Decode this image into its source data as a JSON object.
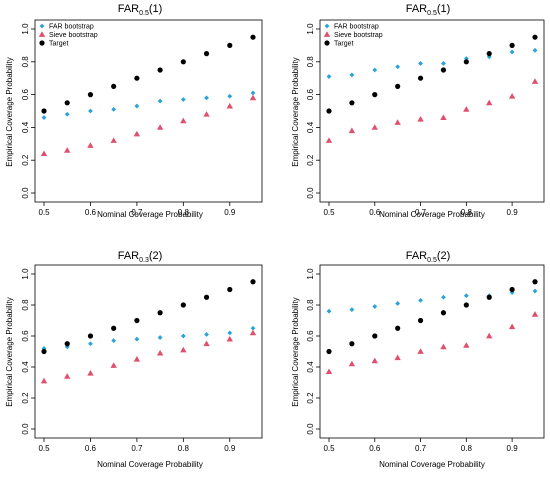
{
  "chart_data": [
    {
      "type": "scatter",
      "title": "FAR",
      "title_subscript": "0.5",
      "title_suffix": "(1)",
      "xlabel": "Nominal Coverage Probability",
      "ylabel": "Empirical Coverage Probability",
      "xlim": [
        0.5,
        0.95
      ],
      "ylim": [
        0.0,
        1.0
      ],
      "xticks": [
        "0.5",
        "0.6",
        "0.7",
        "0.8",
        "0.9"
      ],
      "yticks": [
        "0.0",
        "0.2",
        "0.4",
        "0.6",
        "0.8",
        "1.0"
      ],
      "legend": "top-left",
      "x": [
        0.5,
        0.55,
        0.6,
        0.65,
        0.7,
        0.75,
        0.8,
        0.85,
        0.9,
        0.95
      ],
      "series": [
        {
          "name": "FAR bootstrap",
          "marker": "diamond",
          "color": "#2aa3db",
          "values": [
            0.46,
            0.48,
            0.5,
            0.51,
            0.53,
            0.56,
            0.57,
            0.58,
            0.59,
            0.61
          ]
        },
        {
          "name": "Sieve bootstrap",
          "marker": "triangle",
          "color": "#e0506e",
          "values": [
            0.24,
            0.26,
            0.29,
            0.32,
            0.36,
            0.4,
            0.44,
            0.48,
            0.53,
            0.58
          ]
        },
        {
          "name": "Target",
          "marker": "circle",
          "color": "#000000",
          "values": [
            0.5,
            0.55,
            0.6,
            0.65,
            0.7,
            0.75,
            0.8,
            0.85,
            0.9,
            0.95
          ]
        }
      ]
    },
    {
      "type": "scatter",
      "title": "FAR",
      "title_subscript": "0.5",
      "title_suffix": "(1)",
      "xlabel": "Nominal Coverage Probability",
      "ylabel": "Empirical Coverage Probability",
      "xlim": [
        0.5,
        0.95
      ],
      "ylim": [
        0.0,
        1.0
      ],
      "xticks": [
        "0.5",
        "0.6",
        "0.7",
        "0.8",
        "0.9"
      ],
      "yticks": [
        "0.0",
        "0.2",
        "0.4",
        "0.6",
        "0.8",
        "1.0"
      ],
      "legend": "top-left",
      "x": [
        0.5,
        0.55,
        0.6,
        0.65,
        0.7,
        0.75,
        0.8,
        0.85,
        0.9,
        0.95
      ],
      "series": [
        {
          "name": "FAR bootstrap",
          "marker": "diamond",
          "color": "#2aa3db",
          "values": [
            0.71,
            0.72,
            0.75,
            0.77,
            0.79,
            0.79,
            0.82,
            0.83,
            0.86,
            0.87
          ]
        },
        {
          "name": "Sieve bootstrap",
          "marker": "triangle",
          "color": "#e0506e",
          "values": [
            0.32,
            0.38,
            0.4,
            0.43,
            0.45,
            0.46,
            0.51,
            0.55,
            0.59,
            0.68
          ]
        },
        {
          "name": "Target",
          "marker": "circle",
          "color": "#000000",
          "values": [
            0.5,
            0.55,
            0.6,
            0.65,
            0.7,
            0.75,
            0.8,
            0.85,
            0.9,
            0.95
          ]
        }
      ]
    },
    {
      "type": "scatter",
      "title": "FAR",
      "title_subscript": "0.3",
      "title_suffix": "(2)",
      "xlabel": "Nominal Coverage Probability",
      "ylabel": "Empirical Coverage Probability",
      "xlim": [
        0.5,
        0.95
      ],
      "ylim": [
        0.0,
        1.0
      ],
      "xticks": [
        "0.5",
        "0.6",
        "0.7",
        "0.8",
        "0.9"
      ],
      "yticks": [
        "0.0",
        "0.2",
        "0.4",
        "0.6",
        "0.8",
        "1.0"
      ],
      "legend": "none",
      "x": [
        0.5,
        0.55,
        0.6,
        0.65,
        0.7,
        0.75,
        0.8,
        0.85,
        0.9,
        0.95
      ],
      "series": [
        {
          "name": "FAR bootstrap",
          "marker": "diamond",
          "color": "#2aa3db",
          "values": [
            0.52,
            0.53,
            0.55,
            0.57,
            0.58,
            0.59,
            0.6,
            0.61,
            0.62,
            0.65
          ]
        },
        {
          "name": "Sieve bootstrap",
          "marker": "triangle",
          "color": "#e0506e",
          "values": [
            0.31,
            0.34,
            0.36,
            0.41,
            0.45,
            0.49,
            0.51,
            0.55,
            0.58,
            0.62
          ]
        },
        {
          "name": "Target",
          "marker": "circle",
          "color": "#000000",
          "values": [
            0.5,
            0.55,
            0.6,
            0.65,
            0.7,
            0.75,
            0.8,
            0.85,
            0.9,
            0.95
          ]
        }
      ]
    },
    {
      "type": "scatter",
      "title": "FAR",
      "title_subscript": "0.5",
      "title_suffix": "(2)",
      "xlabel": "Nominal Coverage Probability",
      "ylabel": "Empirical Coverage Probability",
      "xlim": [
        0.5,
        0.95
      ],
      "ylim": [
        0.0,
        1.0
      ],
      "xticks": [
        "0.5",
        "0.6",
        "0.7",
        "0.8",
        "0.9"
      ],
      "yticks": [
        "0.0",
        "0.2",
        "0.4",
        "0.6",
        "0.8",
        "1.0"
      ],
      "legend": "none",
      "x": [
        0.5,
        0.55,
        0.6,
        0.65,
        0.7,
        0.75,
        0.8,
        0.85,
        0.9,
        0.95
      ],
      "series": [
        {
          "name": "FAR bootstrap",
          "marker": "diamond",
          "color": "#2aa3db",
          "values": [
            0.76,
            0.77,
            0.79,
            0.81,
            0.83,
            0.85,
            0.86,
            0.86,
            0.88,
            0.89
          ]
        },
        {
          "name": "Sieve bootstrap",
          "marker": "triangle",
          "color": "#e0506e",
          "values": [
            0.37,
            0.42,
            0.44,
            0.46,
            0.5,
            0.53,
            0.54,
            0.6,
            0.66,
            0.74
          ]
        },
        {
          "name": "Target",
          "marker": "circle",
          "color": "#000000",
          "values": [
            0.5,
            0.55,
            0.6,
            0.65,
            0.7,
            0.75,
            0.8,
            0.85,
            0.9,
            0.95
          ]
        }
      ]
    }
  ]
}
